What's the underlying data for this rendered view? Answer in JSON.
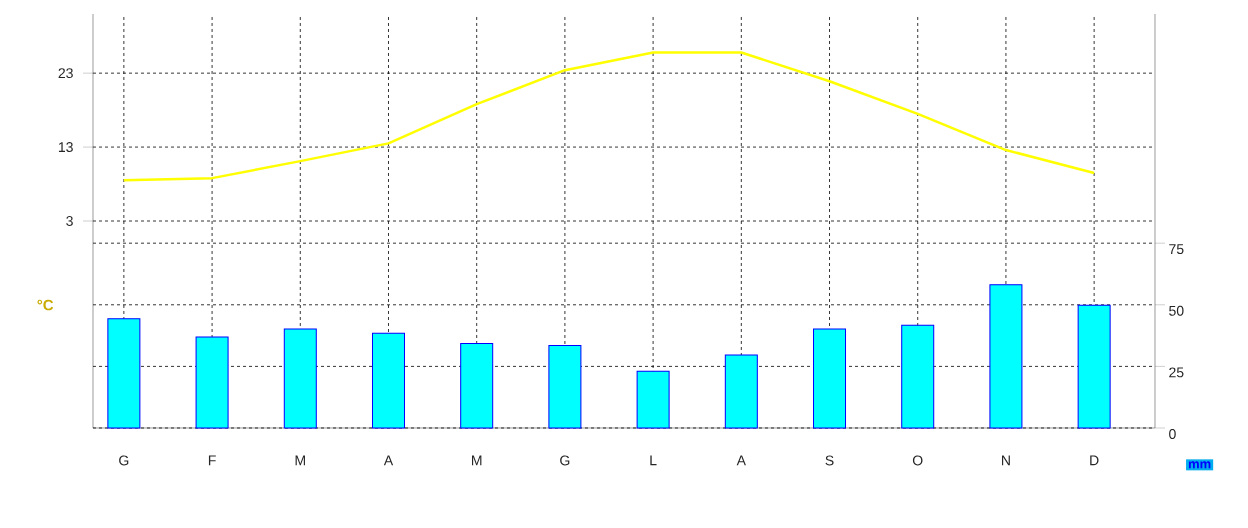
{
  "chart_data": {
    "type": "bar",
    "categories": [
      "G",
      "F",
      "M",
      "A",
      "M",
      "G",
      "L",
      "A",
      "S",
      "O",
      "N",
      "D"
    ],
    "series": [
      {
        "axis": "y2",
        "color": "#00ffff",
        "values": [
          44.3,
          36.9,
          40.2,
          38.5,
          34.3,
          33.5,
          23,
          29.6,
          40.2,
          41.7,
          58.1,
          49.8
        ]
      },
      {
        "type": "line",
        "color": "#ffff00",
        "values": [
          8.5,
          8.8,
          11.1,
          13.5,
          18.8,
          23.4,
          25.8,
          25.8,
          21.9,
          17.5,
          12.6,
          9.5
        ]
      }
    ],
    "ylim": [
      -25,
      31
    ],
    "yticks": [
      3,
      13,
      23
    ],
    "y2lim": [
      0,
      168
    ],
    "y2ticks": [
      0,
      25,
      50,
      75
    ],
    "ylabel": "°C",
    "y2label": "mm",
    "grid": true
  }
}
